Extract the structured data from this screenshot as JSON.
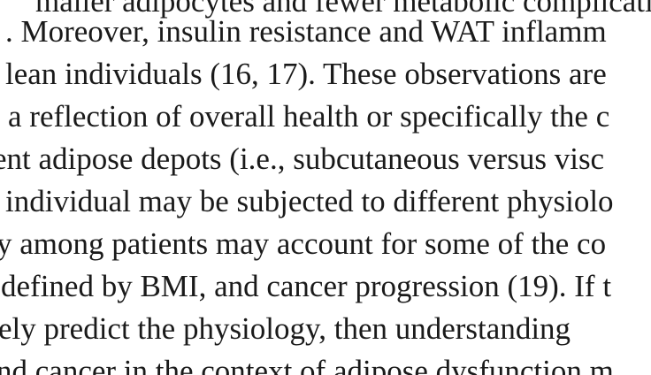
{
  "document": {
    "lines": [
      "maller adipocytes and fewer metabolic complicatio",
      ". Moreover, insulin resistance and WAT inflamm",
      "lean individuals (16, 17). These observations are",
      "a reflection of overall health or specifically the c",
      "ent adipose depots (i.e., subcutaneous versus visc",
      "individual may be subjected to different physiolo",
      "y among patients may account for some of the co",
      "defined by BMI, and cancer progression (19). If t",
      "ely predict the physiology, then understanding",
      "nd cancer in the context of adipose dysfunction m"
    ]
  }
}
